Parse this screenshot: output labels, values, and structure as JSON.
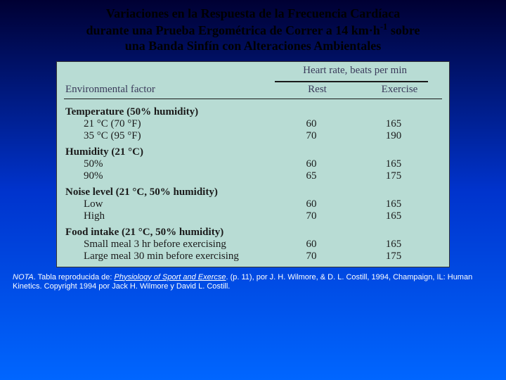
{
  "title_line1": "Variaciones en la Respuesta de la Frecuencia Cardíaca",
  "title_line2_a": "durante una Prueba Ergométrica de Correr a 14 km·h",
  "title_line2_sup": "-1",
  "title_line2_b": " sobre",
  "title_line3": "una Banda Sinfín con Alteraciones Ambientales",
  "header_super": "Heart rate, beats per min",
  "header_col1": "Environmental factor",
  "header_col2": "Rest",
  "header_col3": "Exercise",
  "groups": [
    {
      "head": "Temperature (50% humidity)",
      "rows": [
        {
          "label": "21 °C (70 °F)",
          "rest": "60",
          "ex": "165"
        },
        {
          "label": "35 °C (95 °F)",
          "rest": "70",
          "ex": "190"
        }
      ]
    },
    {
      "head": "Humidity (21 °C)",
      "rows": [
        {
          "label": "50%",
          "rest": "60",
          "ex": "165"
        },
        {
          "label": "90%",
          "rest": "65",
          "ex": "175"
        }
      ]
    },
    {
      "head": "Noise level (21 °C, 50% humidity)",
      "rows": [
        {
          "label": "Low",
          "rest": "60",
          "ex": "165"
        },
        {
          "label": "High",
          "rest": "70",
          "ex": "165"
        }
      ]
    },
    {
      "head": "Food intake (21 °C, 50% humidity)",
      "rows": [
        {
          "label": "Small meal 3 hr before exercising",
          "rest": "60",
          "ex": "165"
        },
        {
          "label": "Large meal 30 min before exercising",
          "rest": "70",
          "ex": "175"
        }
      ]
    }
  ],
  "note_lead": "NOTA",
  "note_text1": ". Tabla reproducida de: ",
  "note_src": "Physiology of Sport and Exercse",
  "note_text2": ". (p. 11), por J. H. Wilmore, & D. L. Costill, 1994, Champaign, IL: Human Kinetics. Copyright 1994 por Jack H. Wilmore y David L. Costill.",
  "colors": {
    "bg_top": "#000033",
    "bg_bottom": "#0066ff",
    "table_bg": "#b8dcd4",
    "text_dark": "#1a1a1a",
    "header_text": "#3a3a5a",
    "note_text": "#ffffff"
  }
}
